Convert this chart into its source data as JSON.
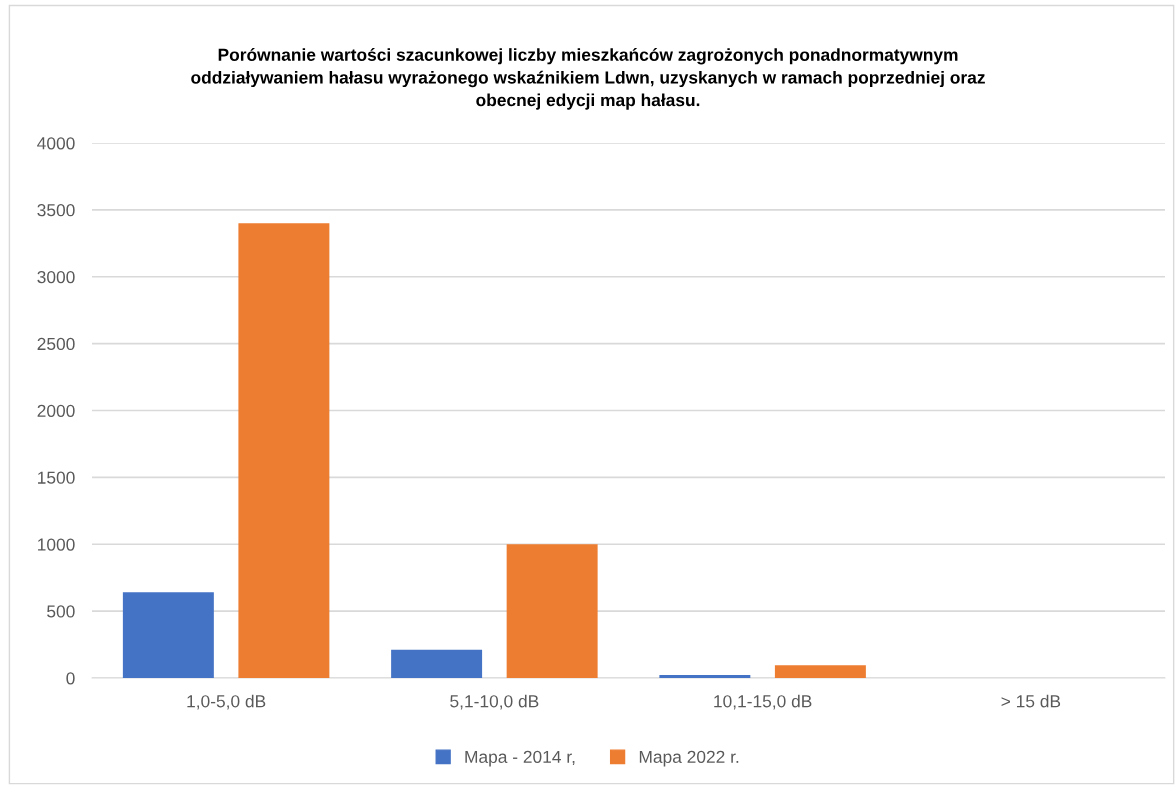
{
  "chart_data": {
    "type": "bar",
    "title": "Porównanie wartości szacunkowej liczby mieszkańców zagrożonych ponadnormatywnym\noddziaływaniem hałasu wyrażonego wskaźnikiem Ldwn, uzyskanych w ramach poprzedniej oraz\nobecnej edycji map hałasu.",
    "categories": [
      "1,0-5,0 dB",
      "5,1-10,0 dB",
      "10,1-15,0 dB",
      "> 15 dB"
    ],
    "series": [
      {
        "name": "Mapa - 2014 r,",
        "color": "#4472c4",
        "values": [
          642,
          212,
          23,
          0
        ]
      },
      {
        "name": "Mapa 2022 r.",
        "color": "#ed7d31",
        "values": [
          3400,
          1000,
          96,
          0
        ]
      }
    ],
    "ylim": [
      0,
      4000
    ],
    "yticks": [
      0,
      500,
      1000,
      1500,
      2000,
      2500,
      3000,
      3500,
      4000
    ],
    "grid": "y",
    "legend": "bottom"
  }
}
